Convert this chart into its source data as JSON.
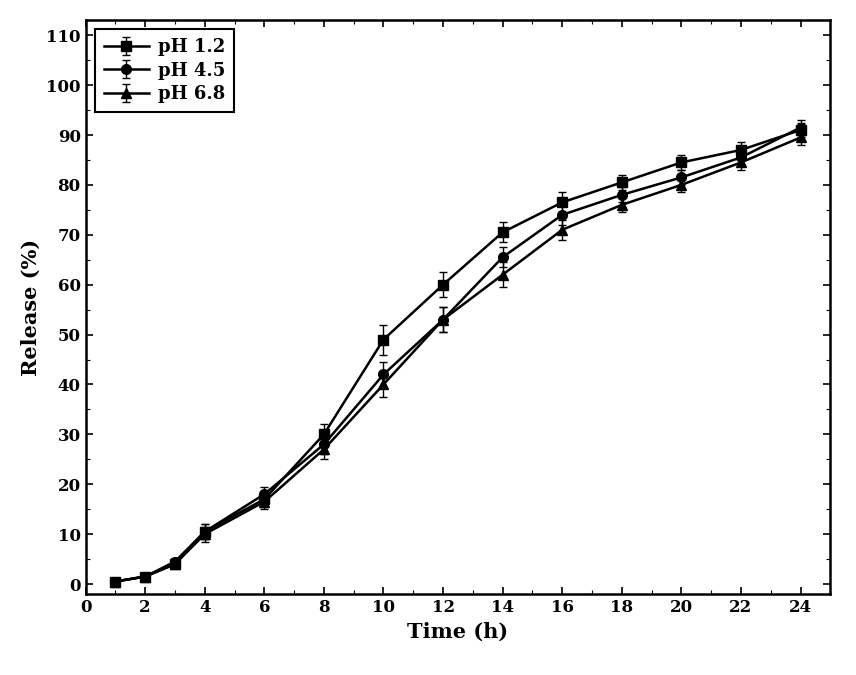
{
  "time": [
    1,
    2,
    3,
    4,
    6,
    8,
    10,
    12,
    14,
    16,
    18,
    20,
    22,
    24
  ],
  "pH12_y": [
    0.5,
    1.5,
    4.0,
    10.5,
    17.0,
    30.0,
    49.0,
    60.0,
    70.5,
    76.5,
    80.5,
    84.5,
    87.0,
    91.0
  ],
  "pH12_err": [
    0.3,
    0.5,
    0.8,
    1.5,
    1.5,
    2.0,
    3.0,
    2.5,
    2.0,
    2.0,
    1.5,
    1.5,
    1.5,
    1.5
  ],
  "pH45_y": [
    0.5,
    1.5,
    4.5,
    10.5,
    18.0,
    28.0,
    42.0,
    53.0,
    65.5,
    74.0,
    78.0,
    81.5,
    85.5,
    91.5
  ],
  "pH45_err": [
    0.3,
    0.5,
    0.8,
    1.5,
    1.5,
    2.0,
    2.5,
    2.5,
    2.0,
    2.0,
    1.5,
    1.5,
    1.5,
    1.5
  ],
  "pH68_y": [
    0.5,
    1.5,
    4.0,
    10.0,
    16.5,
    27.0,
    40.0,
    53.0,
    62.0,
    71.0,
    76.0,
    80.0,
    84.5,
    89.5
  ],
  "pH68_err": [
    0.3,
    0.5,
    0.8,
    1.5,
    1.5,
    2.0,
    2.5,
    2.5,
    2.5,
    2.0,
    1.5,
    1.5,
    1.5,
    1.5
  ],
  "xlabel": "Time (h)",
  "ylabel": "Release (%)",
  "xlim": [
    0,
    25
  ],
  "ylim": [
    -2,
    113
  ],
  "xticks": [
    0,
    2,
    4,
    6,
    8,
    10,
    12,
    14,
    16,
    18,
    20,
    22,
    24
  ],
  "yticks": [
    0,
    10,
    20,
    30,
    40,
    50,
    60,
    70,
    80,
    90,
    100,
    110
  ],
  "legend_labels": [
    "pH 1.2",
    "pH 4.5",
    "pH 6.8"
  ],
  "line_color": "#000000",
  "background_color": "#ffffff",
  "marker_square": "s",
  "marker_circle": "o",
  "marker_triangle": "^",
  "linewidth": 1.8,
  "markersize": 7,
  "capsize": 3,
  "xlabel_fontsize": 15,
  "ylabel_fontsize": 15,
  "tick_fontsize": 12,
  "legend_fontsize": 13
}
